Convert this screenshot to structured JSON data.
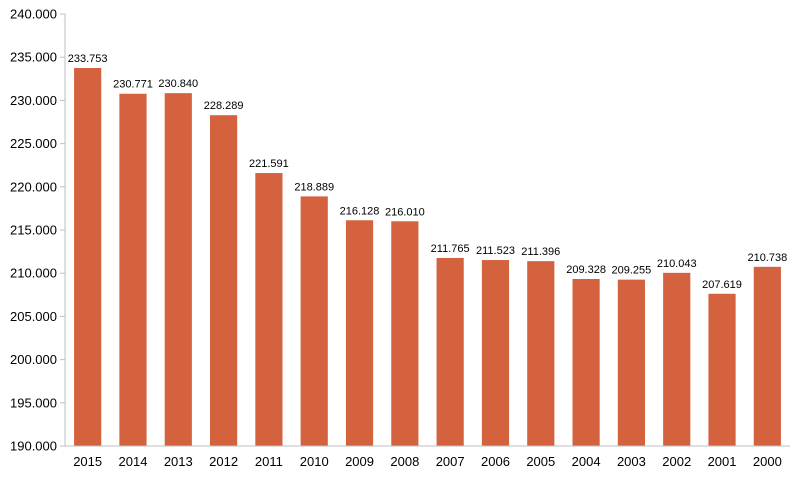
{
  "chart_data": {
    "type": "bar",
    "title": "",
    "xlabel": "",
    "ylabel": "",
    "categories": [
      "2015",
      "2014",
      "2013",
      "2012",
      "2011",
      "2010",
      "2009",
      "2008",
      "2007",
      "2006",
      "2005",
      "2004",
      "2003",
      "2002",
      "2001",
      "2000"
    ],
    "values": [
      233.753,
      230.771,
      230.84,
      228.289,
      221.591,
      218.889,
      216.128,
      216.01,
      211.765,
      211.523,
      211.396,
      209.328,
      209.255,
      210.043,
      207.619,
      210.738
    ],
    "value_labels": [
      "233.753",
      "230.771",
      "230.840",
      "228.289",
      "221.591",
      "218.889",
      "216.128",
      "216.010",
      "211.765",
      "211.523",
      "211.396",
      "209.328",
      "209.255",
      "210.043",
      "207.619",
      "210.738"
    ],
    "ylim": [
      190,
      240
    ],
    "y_ticks": [
      190,
      195,
      200,
      205,
      210,
      215,
      220,
      225,
      230,
      235,
      240
    ],
    "y_tick_labels": [
      "190.000",
      "195.000",
      "200.000",
      "205.000",
      "210.000",
      "215.000",
      "220.000",
      "225.000",
      "230.000",
      "235.000",
      "240.000"
    ],
    "grid": false,
    "legend": "none",
    "colors": {
      "bar": "#D4623F",
      "axis": "#BFBFBF",
      "text": "#000000"
    }
  }
}
